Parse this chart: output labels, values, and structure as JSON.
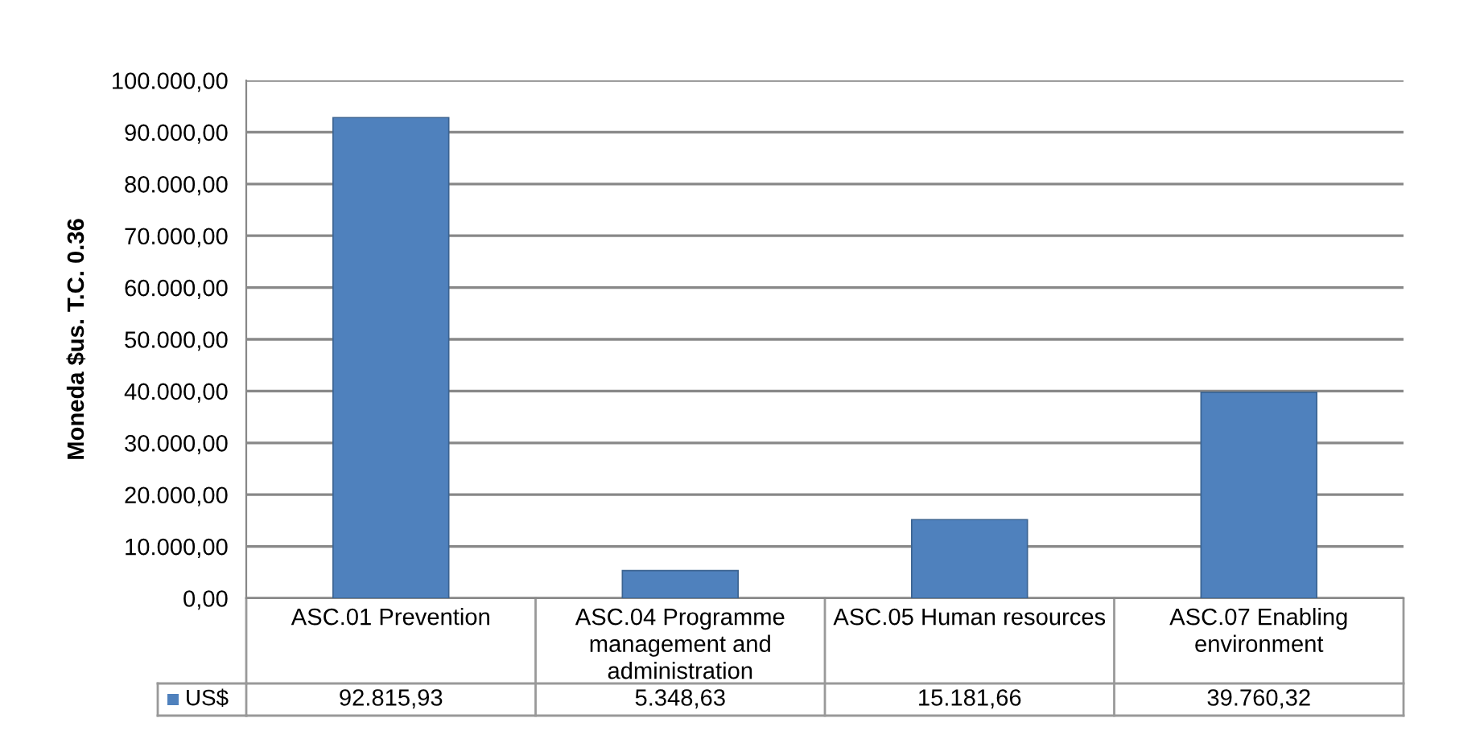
{
  "chart_data": {
    "type": "bar",
    "ylabel": "Moneda $us. T.C. 0.36",
    "categories": [
      "ASC.01 Prevention",
      "ASC.04 Programme management and administration",
      "ASC.05 Human resources",
      "ASC.07 Enabling environment"
    ],
    "series": [
      {
        "name": "US$",
        "color": "#4f81bd",
        "values": [
          92815.93,
          5348.63,
          15181.66,
          39760.32
        ],
        "value_labels": [
          "92.815,93",
          "5.348,63",
          "15.181,66",
          "39.760,32"
        ]
      }
    ],
    "ylim": [
      0,
      100000
    ],
    "yticks": [
      {
        "value": 0,
        "label": "0,00"
      },
      {
        "value": 10000,
        "label": "10.000,00"
      },
      {
        "value": 20000,
        "label": "20.000,00"
      },
      {
        "value": 30000,
        "label": "30.000,00"
      },
      {
        "value": 40000,
        "label": "40.000,00"
      },
      {
        "value": 50000,
        "label": "50.000,00"
      },
      {
        "value": 60000,
        "label": "60.000,00"
      },
      {
        "value": 70000,
        "label": "70.000,00"
      },
      {
        "value": 80000,
        "label": "80.000,00"
      },
      {
        "value": 90000,
        "label": "90.000,00"
      },
      {
        "value": 100000,
        "label": "100.000,00"
      }
    ],
    "grid": "y",
    "legend": "bottom"
  }
}
